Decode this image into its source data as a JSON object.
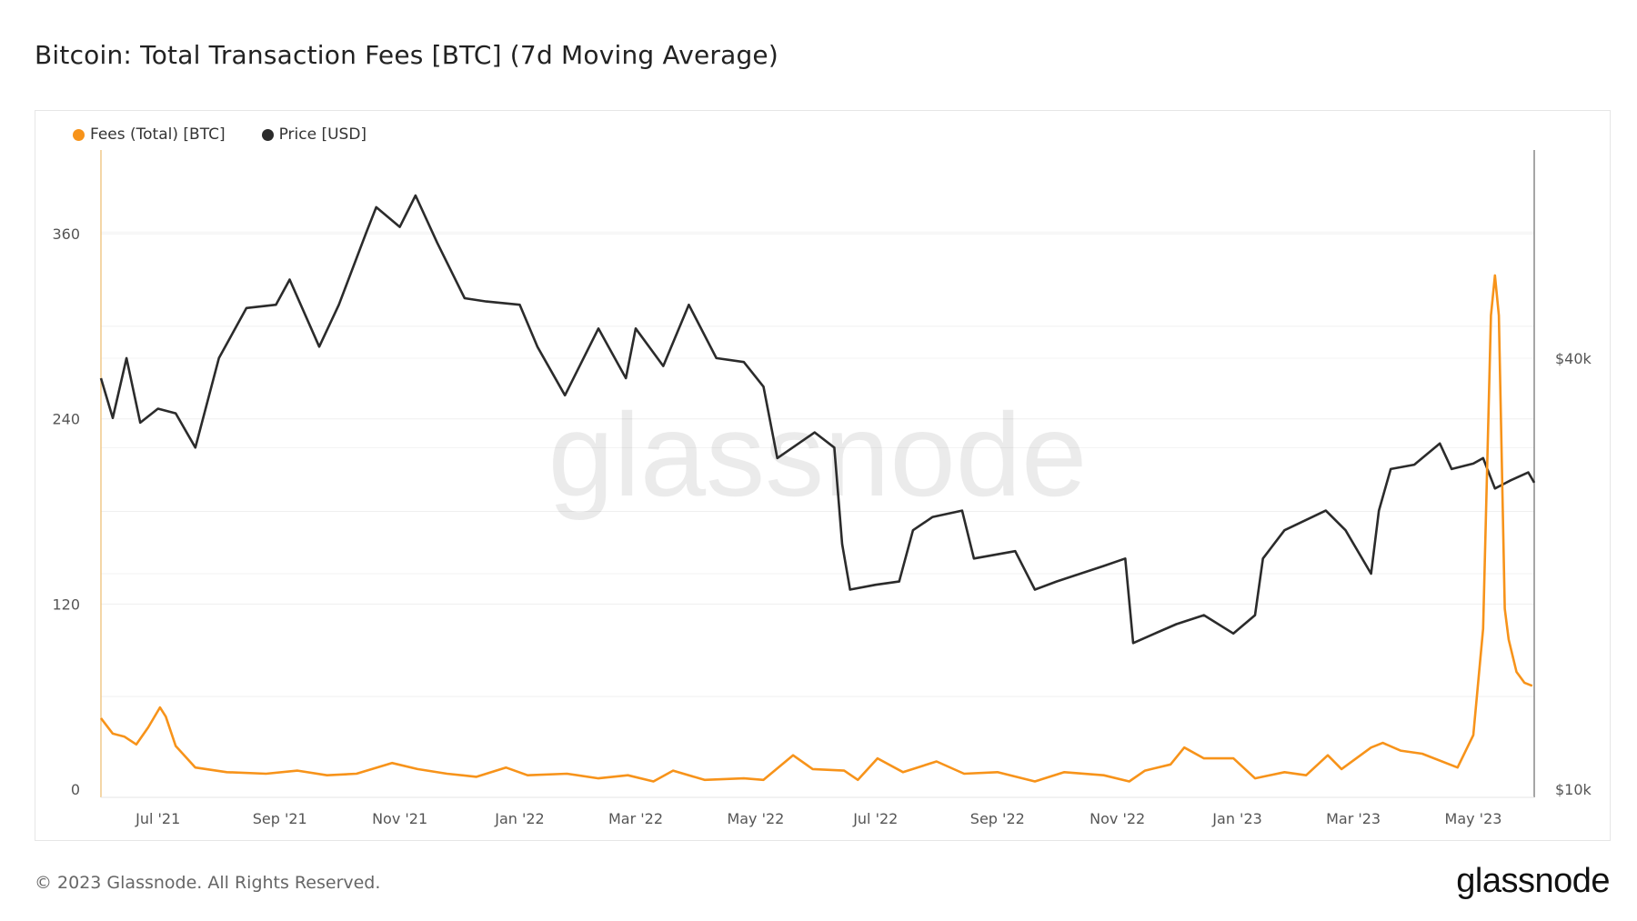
{
  "title": "Bitcoin: Total Transaction Fees [BTC] (7d Moving Average)",
  "footer": "© 2023 Glassnode. All Rights Reserved.",
  "logo": "glassnode",
  "watermark": "glassnode",
  "chart_data": {
    "type": "line",
    "title": "Bitcoin: Total Transaction Fees [BTC] (7d Moving Average)",
    "x_range": [
      "2021-06-02",
      "2023-06-01"
    ],
    "x_ticks": [
      {
        "date": "2021-07-01",
        "label": "Jul '21"
      },
      {
        "date": "2021-09-01",
        "label": "Sep '21"
      },
      {
        "date": "2021-11-01",
        "label": "Nov '21"
      },
      {
        "date": "2022-01-01",
        "label": "Jan '22"
      },
      {
        "date": "2022-03-01",
        "label": "Mar '22"
      },
      {
        "date": "2022-05-01",
        "label": "May '22"
      },
      {
        "date": "2022-07-01",
        "label": "Jul '22"
      },
      {
        "date": "2022-09-01",
        "label": "Sep '22"
      },
      {
        "date": "2022-11-01",
        "label": "Nov '22"
      },
      {
        "date": "2023-01-01",
        "label": "Jan '23"
      },
      {
        "date": "2023-03-01",
        "label": "Mar '23"
      },
      {
        "date": "2023-05-01",
        "label": "May '23"
      }
    ],
    "y_left": {
      "scale": "linear",
      "range": [
        0,
        400
      ],
      "ticks": [
        0,
        120,
        240,
        360
      ],
      "tick_labels": [
        "0",
        "120",
        "240",
        "360"
      ]
    },
    "y_right": {
      "scale": "log",
      "range": [
        10000,
        78000
      ],
      "ticks": [
        10000,
        40000
      ],
      "tick_labels": [
        "$10k",
        "$40k"
      ]
    },
    "grid": true,
    "legend_placement": "top-left",
    "series": [
      {
        "name": "Fees (Total) [BTC]",
        "axis": "left",
        "color": "#f7931a",
        "points": [
          [
            "2021-06-02",
            46
          ],
          [
            "2021-06-08",
            36
          ],
          [
            "2021-06-14",
            34
          ],
          [
            "2021-06-20",
            29
          ],
          [
            "2021-06-26",
            40
          ],
          [
            "2021-07-02",
            53
          ],
          [
            "2021-07-05",
            47
          ],
          [
            "2021-07-10",
            28
          ],
          [
            "2021-07-20",
            14
          ],
          [
            "2021-08-05",
            11
          ],
          [
            "2021-08-25",
            10
          ],
          [
            "2021-09-10",
            12
          ],
          [
            "2021-09-25",
            9
          ],
          [
            "2021-10-10",
            10
          ],
          [
            "2021-10-28",
            17
          ],
          [
            "2021-11-10",
            13
          ],
          [
            "2021-11-25",
            10
          ],
          [
            "2021-12-10",
            8
          ],
          [
            "2021-12-25",
            14
          ],
          [
            "2022-01-05",
            9
          ],
          [
            "2022-01-25",
            10
          ],
          [
            "2022-02-10",
            7
          ],
          [
            "2022-02-25",
            9
          ],
          [
            "2022-03-10",
            5
          ],
          [
            "2022-03-20",
            12
          ],
          [
            "2022-04-05",
            6
          ],
          [
            "2022-04-25",
            7
          ],
          [
            "2022-05-05",
            6
          ],
          [
            "2022-05-20",
            22
          ],
          [
            "2022-05-30",
            13
          ],
          [
            "2022-06-15",
            12
          ],
          [
            "2022-06-22",
            6
          ],
          [
            "2022-07-02",
            20
          ],
          [
            "2022-07-15",
            11
          ],
          [
            "2022-08-01",
            18
          ],
          [
            "2022-08-15",
            10
          ],
          [
            "2022-09-01",
            11
          ],
          [
            "2022-09-20",
            5
          ],
          [
            "2022-10-05",
            11
          ],
          [
            "2022-10-25",
            9
          ],
          [
            "2022-11-07",
            5
          ],
          [
            "2022-11-15",
            12
          ],
          [
            "2022-11-28",
            16
          ],
          [
            "2022-12-05",
            27
          ],
          [
            "2022-12-15",
            20
          ],
          [
            "2022-12-30",
            20
          ],
          [
            "2023-01-10",
            7
          ],
          [
            "2023-01-25",
            11
          ],
          [
            "2023-02-05",
            9
          ],
          [
            "2023-02-16",
            22
          ],
          [
            "2023-02-23",
            13
          ],
          [
            "2023-03-10",
            27
          ],
          [
            "2023-03-16",
            30
          ],
          [
            "2023-03-25",
            25
          ],
          [
            "2023-04-05",
            23
          ],
          [
            "2023-04-23",
            14
          ],
          [
            "2023-05-01",
            35
          ],
          [
            "2023-05-06",
            104
          ],
          [
            "2023-05-10",
            307
          ],
          [
            "2023-05-12",
            333
          ],
          [
            "2023-05-14",
            307
          ],
          [
            "2023-05-17",
            117
          ],
          [
            "2023-05-19",
            97
          ],
          [
            "2023-05-23",
            76
          ],
          [
            "2023-05-27",
            69
          ],
          [
            "2023-05-31",
            67
          ]
        ]
      },
      {
        "name": "Price [USD]",
        "axis": "right",
        "color": "#2b2b2b",
        "points": [
          [
            "2021-06-02",
            37500
          ],
          [
            "2021-06-08",
            33000
          ],
          [
            "2021-06-15",
            40000
          ],
          [
            "2021-06-22",
            32500
          ],
          [
            "2021-07-01",
            34000
          ],
          [
            "2021-07-10",
            33500
          ],
          [
            "2021-07-20",
            30000
          ],
          [
            "2021-08-01",
            40000
          ],
          [
            "2021-08-15",
            47000
          ],
          [
            "2021-08-30",
            47500
          ],
          [
            "2021-09-06",
            51500
          ],
          [
            "2021-09-21",
            41500
          ],
          [
            "2021-10-01",
            47500
          ],
          [
            "2021-10-15",
            60000
          ],
          [
            "2021-10-20",
            65000
          ],
          [
            "2021-11-01",
            61000
          ],
          [
            "2021-11-09",
            67500
          ],
          [
            "2021-11-20",
            58000
          ],
          [
            "2021-12-04",
            48500
          ],
          [
            "2021-12-15",
            48000
          ],
          [
            "2022-01-01",
            47500
          ],
          [
            "2022-01-10",
            41500
          ],
          [
            "2022-01-24",
            35500
          ],
          [
            "2022-02-10",
            44000
          ],
          [
            "2022-02-24",
            37500
          ],
          [
            "2022-03-01",
            44000
          ],
          [
            "2022-03-15",
            39000
          ],
          [
            "2022-03-28",
            47500
          ],
          [
            "2022-04-11",
            40000
          ],
          [
            "2022-04-25",
            39500
          ],
          [
            "2022-05-05",
            36500
          ],
          [
            "2022-05-12",
            29000
          ],
          [
            "2022-05-31",
            31500
          ],
          [
            "2022-06-10",
            30000
          ],
          [
            "2022-06-14",
            22000
          ],
          [
            "2022-06-18",
            19000
          ],
          [
            "2022-07-01",
            19300
          ],
          [
            "2022-07-13",
            19500
          ],
          [
            "2022-07-20",
            23000
          ],
          [
            "2022-07-30",
            24000
          ],
          [
            "2022-08-14",
            24500
          ],
          [
            "2022-08-20",
            21000
          ],
          [
            "2022-09-10",
            21500
          ],
          [
            "2022-09-20",
            19000
          ],
          [
            "2022-10-01",
            19500
          ],
          [
            "2022-10-25",
            20500
          ],
          [
            "2022-11-05",
            21000
          ],
          [
            "2022-11-09",
            16000
          ],
          [
            "2022-11-20",
            16500
          ],
          [
            "2022-12-01",
            17000
          ],
          [
            "2022-12-15",
            17500
          ],
          [
            "2022-12-30",
            16500
          ],
          [
            "2023-01-10",
            17500
          ],
          [
            "2023-01-14",
            21000
          ],
          [
            "2023-01-25",
            23000
          ],
          [
            "2023-02-15",
            24500
          ],
          [
            "2023-02-25",
            23000
          ],
          [
            "2023-03-10",
            20000
          ],
          [
            "2023-03-14",
            24500
          ],
          [
            "2023-03-20",
            28000
          ],
          [
            "2023-04-01",
            28400
          ],
          [
            "2023-04-14",
            30400
          ],
          [
            "2023-04-20",
            28000
          ],
          [
            "2023-05-01",
            28500
          ],
          [
            "2023-05-06",
            29000
          ],
          [
            "2023-05-12",
            26300
          ],
          [
            "2023-05-20",
            27000
          ],
          [
            "2023-05-29",
            27700
          ],
          [
            "2023-06-01",
            26800
          ]
        ]
      }
    ]
  }
}
